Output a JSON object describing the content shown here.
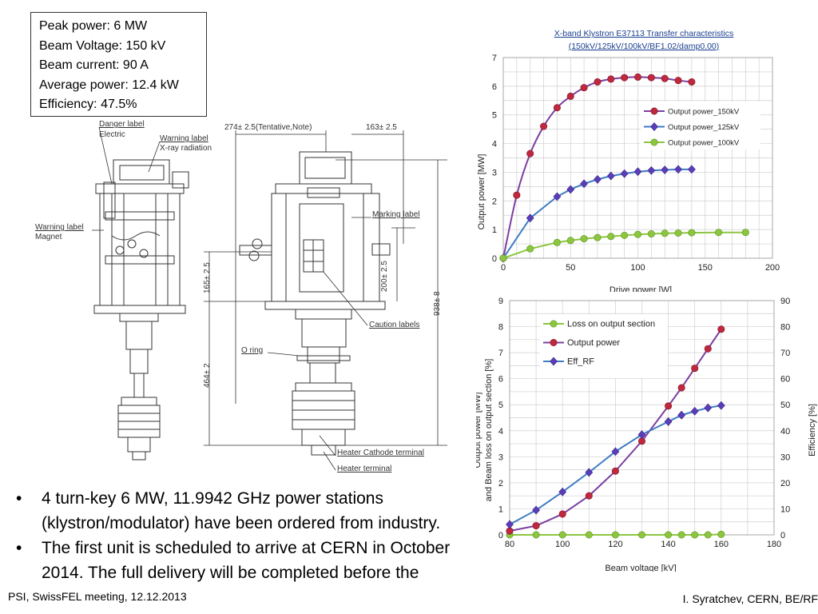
{
  "specs": [
    "Peak power: 6 MW",
    "Beam Voltage: 150 kV",
    "Beam current: 90 A",
    "Average power: 12.4 kW",
    "Efficiency: 47.5%"
  ],
  "drawing_labels": {
    "danger": "Danger label",
    "electric": "Electric",
    "warning_xray_1": "Warning label",
    "warning_xray_2": "X-ray radiation",
    "warning_magnet_1": "Warning label",
    "warning_magnet_2": "Magnet",
    "dim_top_left": "274± 2.5(Tentative,Note)",
    "dim_top_right": "163± 2.5",
    "marking": "Marking label",
    "dim_165": "165± 2.5",
    "dim_200": "200± 2.5",
    "dim_938": "938± 8",
    "caution": "Caution labels",
    "oring": "O ring",
    "dim_464": "464± 2",
    "heater_cathode": "Heater Cathode terminal",
    "heater": "Heater terminal"
  },
  "bullets": [
    "4 turn-key 6 MW, 11.9942 GHz power stations (klystron/modulator) have been ordered from industry.",
    "The first unit is scheduled to arrive at CERN in October 2014. The full delivery will be completed before the"
  ],
  "footer": {
    "left": "PSI, SwissFEL meeting, 12.12.2013",
    "right": "I. Syratchev, CERN, BE/RF"
  },
  "chart_data": [
    {
      "type": "line",
      "title": "X-band Klystron E37113 Transfer characteristics",
      "subtitle": "(150kV/125kV/100kV/BF1.02/damp0.00)",
      "xlabel": "Drive power   [W]",
      "ylabel": "Output power [MW]",
      "xlim": [
        0,
        200
      ],
      "ylim": [
        0,
        7
      ],
      "xticks": [
        0,
        50,
        100,
        150,
        200
      ],
      "yticks": [
        0,
        1,
        2,
        3,
        4,
        5,
        6,
        7
      ],
      "grid": true,
      "legend_position": "right",
      "series": [
        {
          "name": "Output power_150kV",
          "color": "#c0283e",
          "line": "#7b3fa0",
          "marker": "circle",
          "x": [
            0,
            10,
            20,
            30,
            40,
            50,
            60,
            70,
            80,
            90,
            100,
            110,
            120,
            130,
            140
          ],
          "y": [
            0,
            2.2,
            3.65,
            4.6,
            5.25,
            5.65,
            5.95,
            6.15,
            6.25,
            6.3,
            6.32,
            6.3,
            6.27,
            6.2,
            6.15
          ]
        },
        {
          "name": "Output power_125kV",
          "color": "#5b3db8",
          "line": "#3f7cc4",
          "marker": "diamond",
          "x": [
            0,
            20,
            40,
            50,
            60,
            70,
            80,
            90,
            100,
            110,
            120,
            130,
            140
          ],
          "y": [
            0,
            1.4,
            2.15,
            2.4,
            2.6,
            2.75,
            2.87,
            2.95,
            3.02,
            3.06,
            3.08,
            3.1,
            3.1
          ]
        },
        {
          "name": "Output power_100kV",
          "color": "#8cc63f",
          "line": "#8cc63f",
          "marker": "circle",
          "x": [
            0,
            20,
            40,
            50,
            60,
            70,
            80,
            90,
            100,
            110,
            120,
            130,
            140,
            160,
            180
          ],
          "y": [
            0,
            0.33,
            0.55,
            0.62,
            0.68,
            0.72,
            0.76,
            0.8,
            0.83,
            0.85,
            0.87,
            0.88,
            0.89,
            0.9,
            0.9
          ]
        }
      ]
    },
    {
      "type": "line",
      "xlabel": "Beam voltage  [kV]",
      "ylabel": "Output power [MW]",
      "ylabel2": "and Beam loss on output section [%]",
      "y2label": "Efficiency [%]",
      "xlim": [
        80,
        180
      ],
      "ylim": [
        0,
        9
      ],
      "y2lim": [
        0,
        90
      ],
      "xticks": [
        80,
        100,
        120,
        140,
        160,
        180
      ],
      "yticks": [
        0,
        1,
        2,
        3,
        4,
        5,
        6,
        7,
        8,
        9
      ],
      "y2ticks": [
        0,
        10,
        20,
        30,
        40,
        50,
        60,
        70,
        80,
        90
      ],
      "grid": true,
      "legend_position": "top-left",
      "series": [
        {
          "name": "Loss on output section",
          "color": "#8cc63f",
          "line": "#8cc63f",
          "marker": "circle",
          "axis": "left",
          "x": [
            80,
            90,
            100,
            110,
            120,
            130,
            140,
            145,
            150,
            155,
            160
          ],
          "y": [
            0,
            0,
            0,
            0,
            0,
            0,
            0,
            0,
            0,
            0,
            0.02
          ]
        },
        {
          "name": "Output power",
          "color": "#c0283e",
          "line": "#7b3fa0",
          "marker": "circle",
          "axis": "left",
          "x": [
            80,
            90,
            100,
            110,
            120,
            130,
            140,
            145,
            150,
            155,
            160
          ],
          "y": [
            0.15,
            0.35,
            0.8,
            1.5,
            2.45,
            3.6,
            4.95,
            5.65,
            6.4,
            7.15,
            7.9
          ]
        },
        {
          "name": "Eff_RF",
          "color": "#5b3db8",
          "line": "#3f7cc4",
          "marker": "diamond",
          "axis": "right",
          "x": [
            80,
            90,
            100,
            110,
            120,
            130,
            140,
            145,
            150,
            155,
            160
          ],
          "y": [
            4,
            9.5,
            16.5,
            24,
            32,
            38.5,
            43.5,
            46,
            47.5,
            48.8,
            49.7
          ]
        }
      ]
    }
  ]
}
